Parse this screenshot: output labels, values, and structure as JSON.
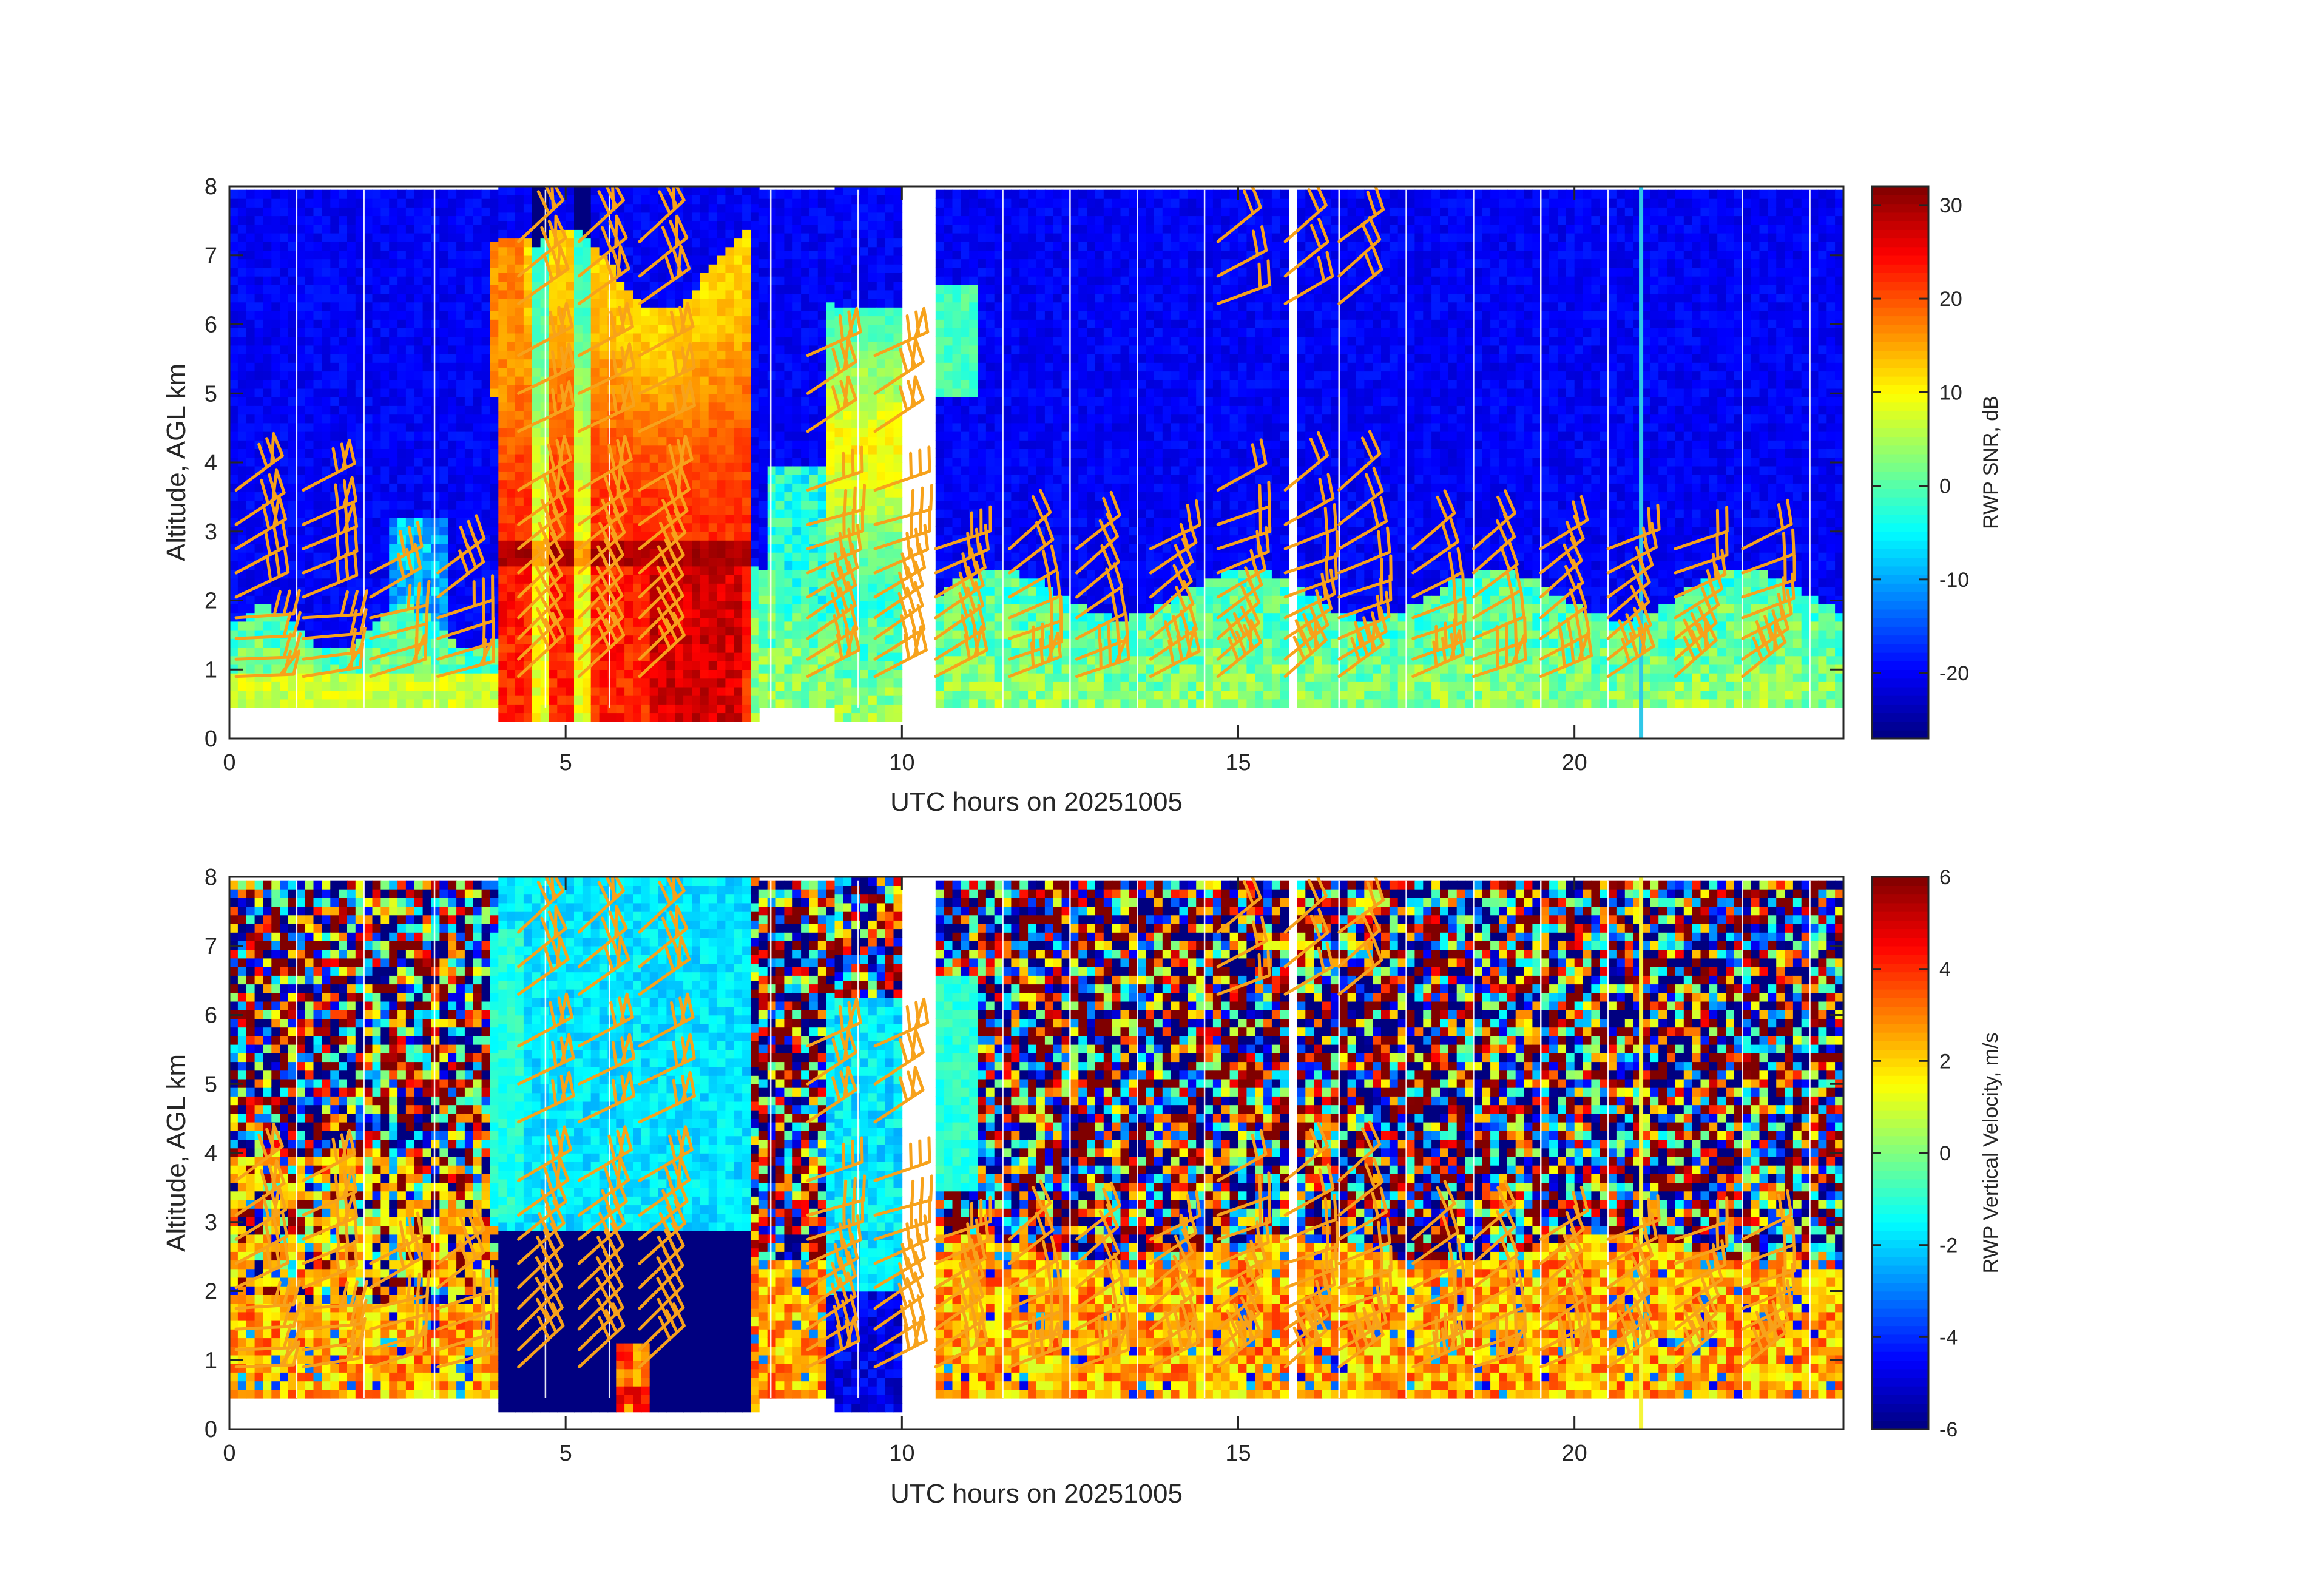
{
  "chart_data": [
    {
      "type": "heatmap",
      "title": "",
      "xlabel": "UTC hours on 20251005",
      "ylabel": "Altitude, AGL km",
      "xlim": [
        0,
        24
      ],
      "ylim": [
        0,
        8
      ],
      "xticks": [
        0,
        5,
        10,
        15,
        20
      ],
      "yticks": [
        0,
        1,
        2,
        3,
        4,
        5,
        6,
        7,
        8
      ],
      "colorbar": {
        "label": "RWP SNR, dB",
        "limits": [
          -27,
          32
        ],
        "ticks": [
          30,
          20,
          10,
          0,
          -10,
          -20
        ]
      },
      "colormap": "jet",
      "grid": false,
      "overlay": "wind barbs (orange)",
      "data_range_km": [
        0.45,
        7.95
      ],
      "features": [
        {
          "name": "precipitation",
          "x": [
            4.0,
            7.8
          ],
          "ymax": 8.0,
          "level_db": 22
        },
        {
          "name": "bright band",
          "x": [
            4.0,
            7.8
          ],
          "y": 2.6,
          "level_db": 29
        },
        {
          "name": "upper echo",
          "x": [
            9.0,
            10.0
          ],
          "ymax": 6.2,
          "level_db": 5
        },
        {
          "name": "boundary layer",
          "x": [
            0,
            24
          ],
          "ymax": 2.4,
          "level_db": -2
        }
      ]
    },
    {
      "type": "heatmap",
      "title": "",
      "xlabel": "UTC hours on 20251005",
      "ylabel": "Altitude, AGL km",
      "xlim": [
        0,
        24
      ],
      "ylim": [
        0,
        8
      ],
      "xticks": [
        0,
        5,
        10,
        15,
        20
      ],
      "yticks": [
        0,
        1,
        2,
        3,
        4,
        5,
        6,
        7,
        8
      ],
      "colorbar": {
        "label": "RWP Vertical Velocity, m/s",
        "limits": [
          -6,
          6
        ],
        "ticks": [
          6,
          4,
          2,
          0,
          -2,
          -4,
          -6
        ]
      },
      "colormap": "jet",
      "grid": false,
      "overlay": "wind barbs (orange)",
      "data_range_km": [
        0.45,
        7.95
      ],
      "features": [
        {
          "name": "falling precipitation",
          "x": [
            4.0,
            7.8
          ],
          "ymax": 8.0,
          "level_ms": -2.5
        },
        {
          "name": "below melting layer",
          "x": [
            4.0,
            7.8
          ],
          "ymax": 2.8,
          "level_ms": -6
        },
        {
          "name": "noise aloft",
          "x": [
            0,
            24
          ],
          "ymin": 2.6,
          "level_ms": "random"
        }
      ]
    }
  ],
  "colors": {
    "barb": "#f7a21b",
    "axis": "#262626"
  }
}
